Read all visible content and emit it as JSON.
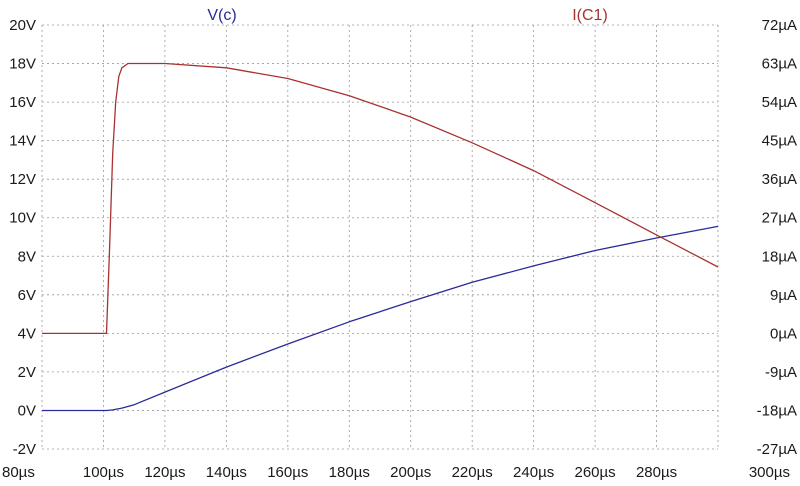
{
  "chart_data": {
    "type": "line",
    "title": "",
    "xlabel": "",
    "ylabel_left": "",
    "ylabel_right": "",
    "x_unit": "µs",
    "xlim": [
      80,
      300
    ],
    "ylim_left": [
      -2,
      20
    ],
    "ylim_right": [
      -27,
      72
    ],
    "grid": true,
    "x_ticks": [
      "80µs",
      "100µs",
      "120µs",
      "140µs",
      "160µs",
      "180µs",
      "200µs",
      "220µs",
      "240µs",
      "260µs",
      "280µs",
      "300µs"
    ],
    "y_left_ticks": [
      "-2V",
      "0V",
      "2V",
      "4V",
      "6V",
      "8V",
      "10V",
      "12V",
      "14V",
      "16V",
      "18V",
      "20V"
    ],
    "y_right_ticks": [
      "-27µA",
      "-18µA",
      "-9µA",
      "0µA",
      "9µA",
      "18µA",
      "27µA",
      "36µA",
      "45µA",
      "54µA",
      "63µA",
      "72µA"
    ],
    "series": [
      {
        "name": "V(c)",
        "axis": "left",
        "unit": "V",
        "color": "#2a2a9a",
        "x": [
          80,
          101,
          103,
          106,
          110,
          120,
          140,
          160,
          180,
          200,
          220,
          240,
          260,
          280,
          300
        ],
        "y": [
          0,
          0,
          0.03,
          0.12,
          0.3,
          0.95,
          2.25,
          3.45,
          4.6,
          5.65,
          6.65,
          7.5,
          8.3,
          8.95,
          9.55
        ]
      },
      {
        "name": "I(C1)",
        "axis": "right",
        "unit": "µA",
        "color": "#a83232",
        "x": [
          80,
          101,
          102,
          103,
          104,
          105,
          106,
          108,
          110,
          120,
          140,
          160,
          180,
          200,
          220,
          240,
          260,
          280,
          300
        ],
        "y": [
          0,
          0,
          20,
          42,
          54,
          60,
          62,
          63,
          63,
          63,
          62,
          59.5,
          55.5,
          50.5,
          44.5,
          38,
          30.5,
          23,
          15.5
        ]
      }
    ]
  }
}
